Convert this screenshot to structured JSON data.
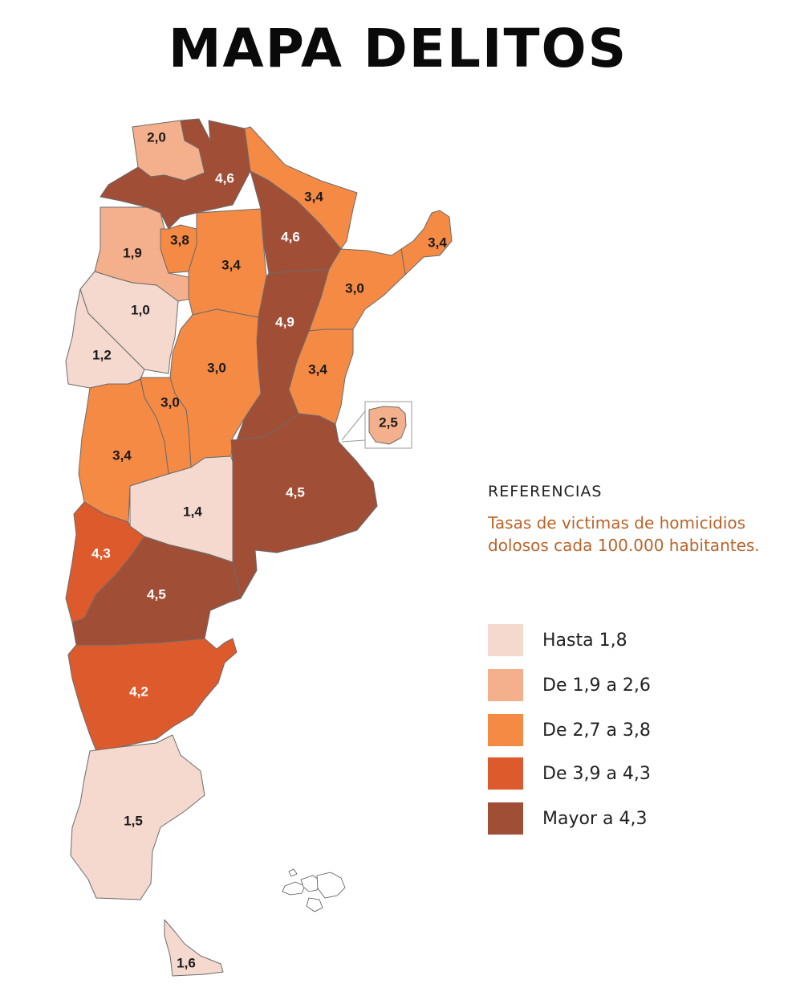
{
  "title": "MAPA DELITOS",
  "legend": {
    "heading": "REFERENCIAS",
    "subtitle": "Tasas de victimas de homicidios dolosos cada 100.000 habitantes.",
    "items": [
      {
        "label": "Hasta 1,8",
        "color": "#f5d9cf"
      },
      {
        "label": "De 1,9 a 2,6",
        "color": "#f4b08c"
      },
      {
        "label": "De 2,7 a 3,8",
        "color": "#f58a45"
      },
      {
        "label": "De 3,9 a 4,3",
        "color": "#dc5a2c"
      },
      {
        "label": "Mayor a 4,3",
        "color": "#a14e37"
      }
    ]
  },
  "regions": [
    {
      "id": "jujuy",
      "value": "2,0",
      "color": "#f4b08c"
    },
    {
      "id": "salta",
      "value": "4,6",
      "color": "#a14e37"
    },
    {
      "id": "formosa",
      "value": "3,4",
      "color": "#f58a45"
    },
    {
      "id": "catamarca",
      "value": "1,9",
      "color": "#f4b08c"
    },
    {
      "id": "tucuman",
      "value": "3,8",
      "color": "#f58a45"
    },
    {
      "id": "santiago-del-estero",
      "value": "3,4",
      "color": "#f58a45"
    },
    {
      "id": "chaco",
      "value": "4,6",
      "color": "#a14e37"
    },
    {
      "id": "misiones",
      "value": "3,4",
      "color": "#f58a45"
    },
    {
      "id": "corrientes",
      "value": "3,0",
      "color": "#f58a45"
    },
    {
      "id": "la-rioja",
      "value": "1,0",
      "color": "#f5d9cf"
    },
    {
      "id": "san-juan",
      "value": "1,2",
      "color": "#f5d9cf"
    },
    {
      "id": "santa-fe",
      "value": "4,9",
      "color": "#a14e37"
    },
    {
      "id": "cordoba",
      "value": "3,0",
      "color": "#f58a45"
    },
    {
      "id": "entre-rios",
      "value": "3,4",
      "color": "#f58a45"
    },
    {
      "id": "san-luis",
      "value": "3,0",
      "color": "#f58a45"
    },
    {
      "id": "mendoza",
      "value": "3,4",
      "color": "#f58a45"
    },
    {
      "id": "caba",
      "value": "2,5",
      "color": "#f4b08c"
    },
    {
      "id": "buenos-aires",
      "value": "4,5",
      "color": "#a14e37"
    },
    {
      "id": "la-pampa",
      "value": "1,4",
      "color": "#f5d9cf"
    },
    {
      "id": "neuquen",
      "value": "4,3",
      "color": "#dc5a2c"
    },
    {
      "id": "rio-negro",
      "value": "4,5",
      "color": "#a14e37"
    },
    {
      "id": "chubut",
      "value": "4,2",
      "color": "#dc5a2c"
    },
    {
      "id": "santa-cruz",
      "value": "1,5",
      "color": "#f5d9cf"
    },
    {
      "id": "tierra-del-fuego",
      "value": "1,6",
      "color": "#f5d9cf"
    }
  ]
}
